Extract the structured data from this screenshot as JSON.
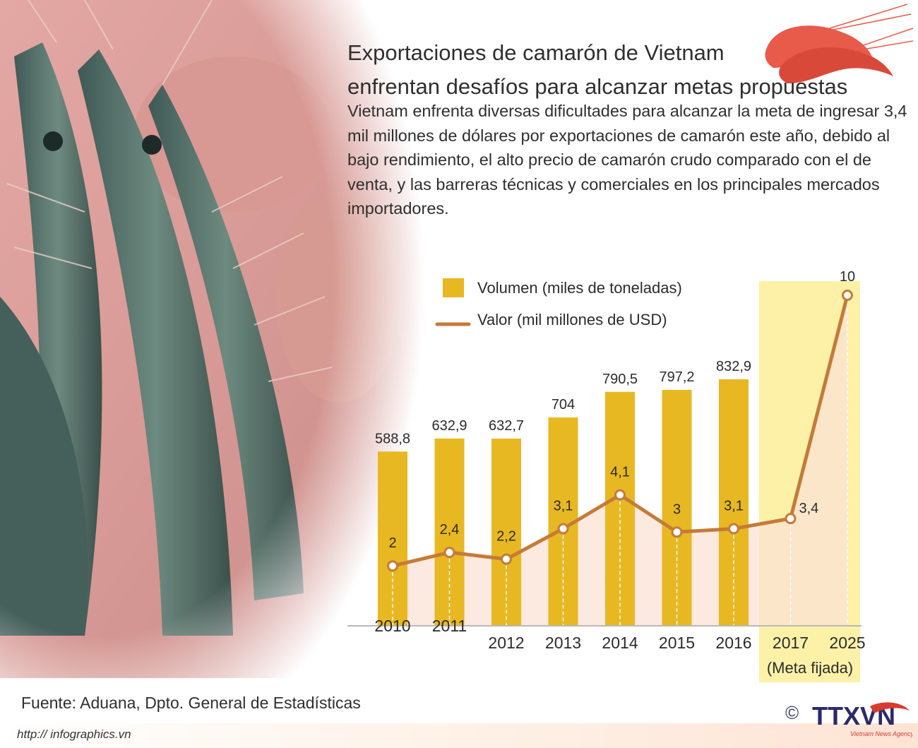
{
  "title": {
    "line1": "Exportaciones de camarón de Vietnam",
    "line2": "enfrentan desafíos para alcanzar metas propuestas"
  },
  "intro": "Vietnam enfrenta diversas dificultades para alcanzar la meta de ingresar 3,4 mil millones de dólares por exportaciones de camarón este año, debido al bajo rendimiento, el alto precio de camarón crudo comparado con el de venta, y las barreras técnicas y comerciales en los principales mercados importadores.",
  "source": "Fuente: Aduana, Dpto. General de Estadísticas",
  "website": "http:// infographics.vn",
  "logo": {
    "copyright": "©",
    "name": "TTXVN",
    "tagline": "Vietnam News Agency"
  },
  "colors": {
    "bar": "#e8b823",
    "line": "#c57b38",
    "target_band": "#fdf1a8",
    "area": "#fbe1d4"
  },
  "chart_data": {
    "type": "bar",
    "categories": [
      "2010",
      "2011",
      "2012",
      "2013",
      "2014",
      "2015",
      "2016",
      "2017",
      "2025"
    ],
    "target_note": "(Meta fijada)",
    "legend": [
      {
        "name": "Volumen (miles de toneladas)",
        "kind": "bar"
      },
      {
        "name": "Valor (mil millones de USD)",
        "kind": "line"
      }
    ],
    "legend_placement": "top-left",
    "series": [
      {
        "name": "Volumen (miles de toneladas)",
        "type": "bar",
        "values": [
          588.8,
          632.9,
          632.7,
          704,
          790.5,
          797.2,
          832.9,
          null,
          null
        ],
        "labels": [
          "588,8",
          "632,9",
          "632,7",
          "704",
          "790,5",
          "797,2",
          "832,9",
          "",
          ""
        ]
      },
      {
        "name": "Valor (mil millones de USD)",
        "type": "line",
        "values": [
          2,
          2.4,
          2.2,
          3.1,
          4.1,
          3,
          3.1,
          3.4,
          10
        ],
        "labels": [
          "2",
          "2,4",
          "2,2",
          "3,1",
          "4,1",
          "3",
          "3,1",
          "3,4",
          "10"
        ]
      }
    ]
  }
}
